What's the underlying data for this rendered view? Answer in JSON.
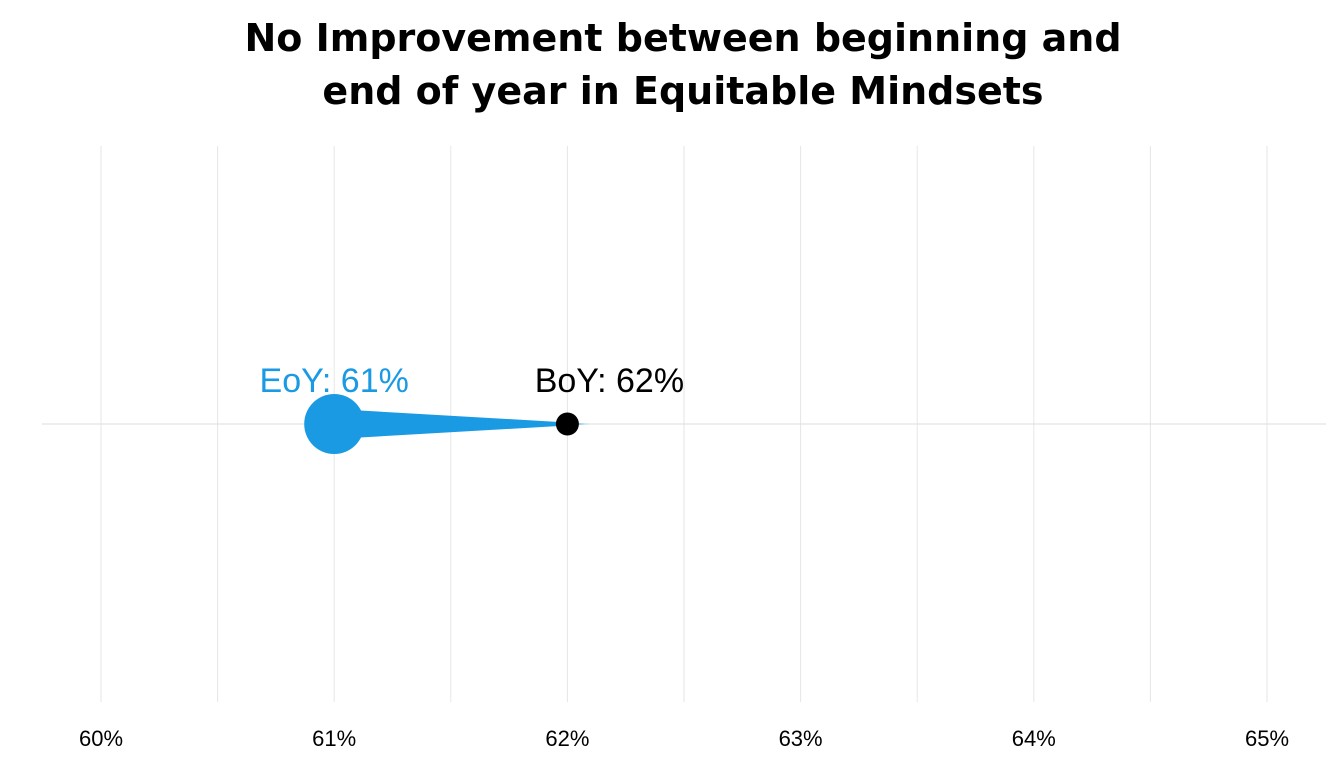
{
  "chart_data": {
    "type": "scatter",
    "title_lines": [
      "No Improvement between beginning and",
      "end of year in Equitable Mindsets"
    ],
    "xlim": [
      60,
      65
    ],
    "x_ticks": [
      60,
      61,
      62,
      63,
      64,
      65
    ],
    "x_tick_labels": [
      "60%",
      "61%",
      "62%",
      "63%",
      "64%",
      "65%"
    ],
    "grid": true,
    "points": [
      {
        "label": "BoY: 62%",
        "x": 62,
        "color": "#000000"
      },
      {
        "label": "EoY: 61%",
        "x": 61,
        "color": "#1B9AE4"
      }
    ],
    "arrow": {
      "from_x": 62,
      "to_x": 61,
      "color": "#1B9AE4"
    }
  }
}
